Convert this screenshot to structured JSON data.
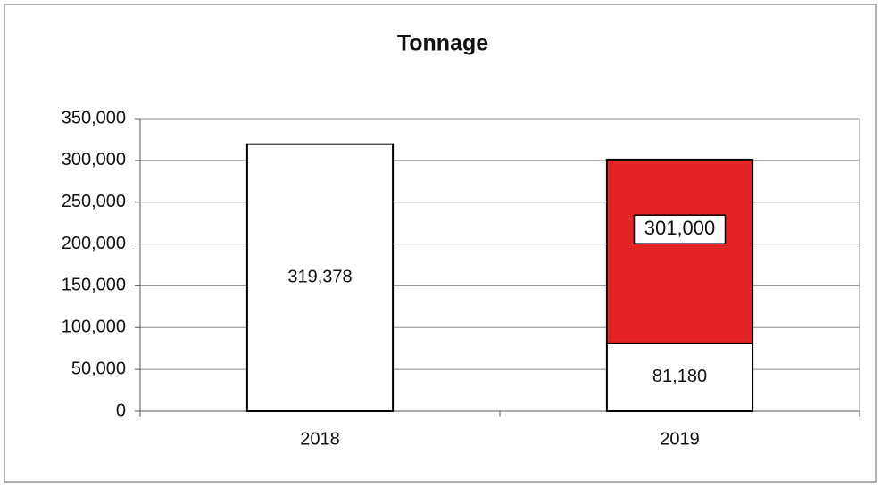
{
  "chart_data": {
    "type": "stacked_bar",
    "title": "Tonnage",
    "categories": [
      "2018",
      "2019"
    ],
    "series": [
      {
        "color": "#ffffff",
        "values": [
          319378,
          81180
        ],
        "value_labels": [
          "319,378",
          "81,180"
        ]
      },
      {
        "color": "#e42424",
        "values": [
          null,
          219820
        ]
      }
    ],
    "stack_totals": {
      "values": [
        null,
        301000
      ],
      "value_labels": [
        null,
        "301,000"
      ]
    },
    "ylim": [
      0,
      350000
    ],
    "yticks": [
      0,
      {
        "value": 50000,
        "label": "50,000"
      },
      {
        "value": 100000,
        "label": "100,000"
      },
      {
        "value": 150000,
        "label": "150,000"
      },
      {
        "value": 200000,
        "label": "200,000"
      },
      {
        "value": 250000,
        "label": "250,000"
      },
      {
        "value": 300000,
        "label": "300,000"
      },
      {
        "value": 350000,
        "label": "350,000"
      }
    ],
    "grid": true
  }
}
